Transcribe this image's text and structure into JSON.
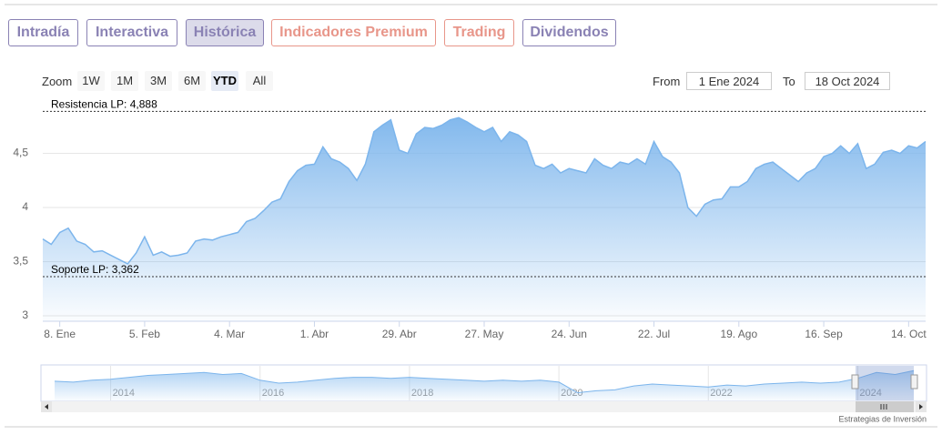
{
  "tabs": [
    "Intradía",
    "Interactiva",
    "Histórica",
    "Indicadores Premium",
    "Trading",
    "Dividendos"
  ],
  "toolbar": {
    "zoom_label": "Zoom",
    "zoom_buttons": [
      "1W",
      "1M",
      "3M",
      "6M",
      "YTD",
      "All"
    ],
    "from_label": "From",
    "from": "1 Ene 2024",
    "to_label": "To",
    "to": "18 Oct 2024"
  },
  "credit": "Estrategias de Inversión",
  "chart_data": [
    {
      "type": "area",
      "color": "#7cb5ec",
      "categories": [
        null,
        null,
        "8. Ene",
        null,
        null,
        null,
        null,
        null,
        null,
        null,
        null,
        null,
        "5. Feb",
        null,
        null,
        null,
        null,
        null,
        null,
        null,
        null,
        null,
        "4. Mar",
        null,
        null,
        null,
        null,
        null,
        null,
        null,
        null,
        null,
        "1. Abr",
        null,
        null,
        null,
        null,
        null,
        null,
        null,
        null,
        null,
        "29. Abr",
        null,
        null,
        null,
        null,
        null,
        null,
        null,
        null,
        null,
        "27. May",
        null,
        null,
        null,
        null,
        null,
        null,
        null,
        null,
        null,
        "24. Jun",
        null,
        null,
        null,
        null,
        null,
        null,
        null,
        null,
        null,
        "22. Jul",
        null,
        null,
        null,
        null,
        null,
        null,
        null,
        null,
        null,
        "19. Ago",
        null,
        null,
        null,
        null,
        null,
        null,
        null,
        null,
        null,
        "16. Sep",
        null,
        null,
        null,
        null,
        null,
        null,
        null,
        null,
        null,
        "14. Oct",
        null,
        null
      ],
      "values": [
        3.71,
        3.66,
        3.77,
        3.81,
        3.69,
        3.66,
        3.59,
        3.6,
        3.56,
        3.52,
        3.48,
        3.58,
        3.73,
        3.56,
        3.59,
        3.55,
        3.56,
        3.58,
        3.69,
        3.71,
        3.7,
        3.73,
        3.75,
        3.77,
        3.87,
        3.9,
        3.97,
        4.05,
        4.08,
        4.24,
        4.34,
        4.39,
        4.4,
        4.56,
        4.45,
        4.42,
        4.36,
        4.25,
        4.4,
        4.7,
        4.76,
        4.81,
        4.53,
        4.5,
        4.68,
        4.74,
        4.73,
        4.76,
        4.81,
        4.83,
        4.79,
        4.74,
        4.7,
        4.74,
        4.61,
        4.7,
        4.67,
        4.61,
        4.39,
        4.36,
        4.4,
        4.32,
        4.36,
        4.34,
        4.32,
        4.45,
        4.39,
        4.36,
        4.42,
        4.4,
        4.45,
        4.4,
        4.61,
        4.47,
        4.42,
        4.32,
        4.0,
        3.92,
        4.03,
        4.07,
        4.08,
        4.19,
        4.19,
        4.24,
        4.36,
        4.4,
        4.42,
        4.36,
        4.3,
        4.24,
        4.32,
        4.36,
        4.47,
        4.5,
        4.57,
        4.5,
        4.59,
        4.36,
        4.4,
        4.51,
        4.53,
        4.5,
        4.57,
        4.55,
        4.61
      ],
      "ylim": [
        2.95,
        4.95
      ],
      "yticks": [
        3,
        {
          "value": 3.5,
          "label": "3,5"
        },
        4,
        {
          "value": 4.5,
          "label": "4,5"
        }
      ],
      "grid": true,
      "annotations": [
        {
          "value": 4.888,
          "label": "Resistencia LP: 4,888"
        },
        {
          "value": 3.362,
          "label": "Soporte LP: 3,362"
        }
      ]
    },
    {
      "type": "area",
      "color": "#7cb5ec",
      "categories": [
        null,
        null,
        null,
        "2014",
        null,
        null,
        null,
        null,
        null,
        null,
        null,
        "2016",
        null,
        null,
        null,
        null,
        null,
        null,
        null,
        "2018",
        null,
        null,
        null,
        null,
        null,
        null,
        null,
        "2020",
        null,
        null,
        null,
        null,
        null,
        null,
        null,
        "2022",
        null,
        null,
        null,
        null,
        null,
        null,
        null,
        "2024",
        null,
        null,
        null
      ],
      "values": [
        3.5,
        3.4,
        3.6,
        3.7,
        3.9,
        4.1,
        4.2,
        4.3,
        4.4,
        4.2,
        4.3,
        3.6,
        3.3,
        3.4,
        3.6,
        3.8,
        3.9,
        3.9,
        3.8,
        3.9,
        3.8,
        3.7,
        3.6,
        3.5,
        3.6,
        3.5,
        3.6,
        3.4,
        2.3,
        2.5,
        2.6,
        3.0,
        3.2,
        3.1,
        3.0,
        2.9,
        3.1,
        3.0,
        3.2,
        3.3,
        3.4,
        3.3,
        3.4,
        3.8,
        4.4,
        4.2,
        4.6
      ],
      "ylim": [
        1.5,
        5
      ]
    }
  ]
}
